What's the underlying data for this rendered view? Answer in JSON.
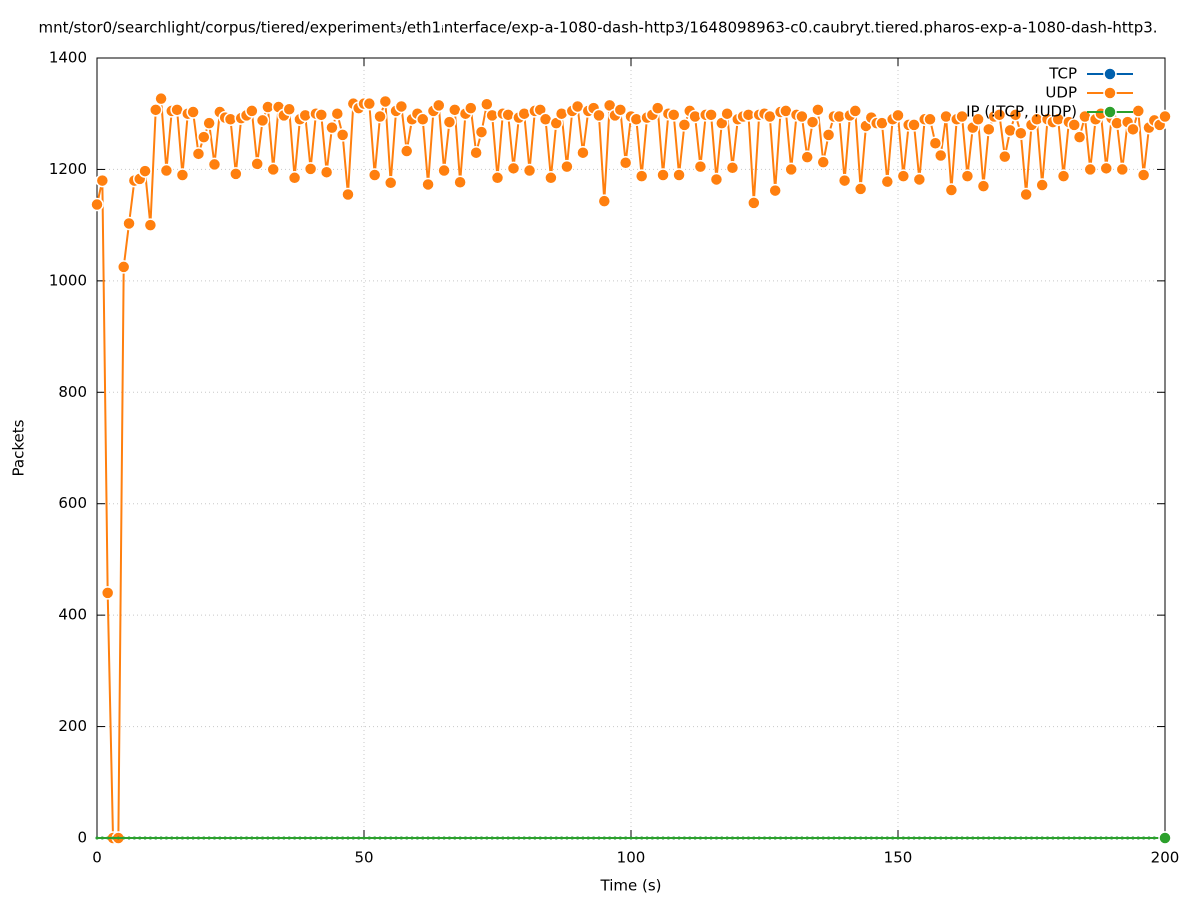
{
  "chart_data": {
    "type": "line",
    "title": "mnt/stor0/searchlight/corpus/tiered/experiment₃/eth1ᵢnterface/exp-a-1080-dash-http3/1648098963-c0.caubryt.tiered.pharos-exp-a-1080-dash-http3.",
    "xlabel": "Time (s)",
    "ylabel": "Packets",
    "xlim": [
      0,
      200
    ],
    "xticks": [
      0,
      50,
      100,
      150,
      200
    ],
    "ylim": [
      0,
      1400
    ],
    "yticks": [
      0,
      200,
      400,
      600,
      800,
      1000,
      1200,
      1400
    ],
    "grid": true,
    "legend": "upper right",
    "x": [
      0,
      1,
      2,
      3,
      4,
      5,
      6,
      7,
      8,
      9,
      10,
      11,
      12,
      13,
      14,
      15,
      16,
      17,
      18,
      19,
      20,
      21,
      22,
      23,
      24,
      25,
      26,
      27,
      28,
      29,
      30,
      31,
      32,
      33,
      34,
      35,
      36,
      37,
      38,
      39,
      40,
      41,
      42,
      43,
      44,
      45,
      46,
      47,
      48,
      49,
      50,
      51,
      52,
      53,
      54,
      55,
      56,
      57,
      58,
      59,
      60,
      61,
      62,
      63,
      64,
      65,
      66,
      67,
      68,
      69,
      70,
      71,
      72,
      73,
      74,
      75,
      76,
      77,
      78,
      79,
      80,
      81,
      82,
      83,
      84,
      85,
      86,
      87,
      88,
      89,
      90,
      91,
      92,
      93,
      94,
      95,
      96,
      97,
      98,
      99,
      100,
      101,
      102,
      103,
      104,
      105,
      106,
      107,
      108,
      109,
      110,
      111,
      112,
      113,
      114,
      115,
      116,
      117,
      118,
      119,
      120,
      121,
      122,
      123,
      124,
      125,
      126,
      127,
      128,
      129,
      130,
      131,
      132,
      133,
      134,
      135,
      136,
      137,
      138,
      139,
      140,
      141,
      142,
      143,
      144,
      145,
      146,
      147,
      148,
      149,
      150,
      151,
      152,
      153,
      154,
      155,
      156,
      157,
      158,
      159,
      160,
      161,
      162,
      163,
      164,
      165,
      166,
      167,
      168,
      169,
      170,
      171,
      172,
      173,
      174,
      175,
      176,
      177,
      178,
      179,
      180,
      181,
      182,
      183,
      184,
      185,
      186,
      187,
      188,
      189,
      190,
      191,
      192,
      193,
      194,
      195,
      196,
      197,
      198,
      199,
      200
    ],
    "series": [
      {
        "name": "TCP",
        "color": "#0060ad",
        "values": [
          0,
          0,
          0,
          0,
          0,
          0,
          0,
          0,
          0,
          0,
          0,
          0,
          0,
          0,
          0,
          0,
          0,
          0,
          0,
          0,
          0,
          0,
          0,
          0,
          0,
          0,
          0,
          0,
          0,
          0,
          0,
          0,
          0,
          0,
          0,
          0,
          0,
          0,
          0,
          0,
          0,
          0,
          0,
          0,
          0,
          0,
          0,
          0,
          0,
          0,
          0,
          0,
          0,
          0,
          0,
          0,
          0,
          0,
          0,
          0,
          0,
          0,
          0,
          0,
          0,
          0,
          0,
          0,
          0,
          0,
          0,
          0,
          0,
          0,
          0,
          0,
          0,
          0,
          0,
          0,
          0,
          0,
          0,
          0,
          0,
          0,
          0,
          0,
          0,
          0,
          0,
          0,
          0,
          0,
          0,
          0,
          0,
          0,
          0,
          0,
          0,
          0,
          0,
          0,
          0,
          0,
          0,
          0,
          0,
          0,
          0,
          0,
          0,
          0,
          0,
          0,
          0,
          0,
          0,
          0,
          0,
          0,
          0,
          0,
          0,
          0,
          0,
          0,
          0,
          0,
          0,
          0,
          0,
          0,
          0,
          0,
          0,
          0,
          0,
          0,
          0,
          0,
          0,
          0,
          0,
          0,
          0,
          0,
          0,
          0,
          0,
          0,
          0,
          0,
          0,
          0,
          0,
          0,
          0,
          0,
          0,
          0,
          0,
          0,
          0,
          0,
          0,
          0,
          0,
          0,
          0,
          0,
          0,
          0,
          0,
          0,
          0,
          0,
          0,
          0,
          0,
          0,
          0,
          0,
          0,
          0,
          0,
          0,
          0,
          0,
          0,
          0,
          0,
          0,
          0,
          0,
          0,
          0,
          0,
          0,
          0
        ]
      },
      {
        "name": "UDP",
        "color": "#ff7f0e",
        "values": [
          1137,
          1180,
          440,
          0,
          0,
          1025,
          1103,
          1180,
          1183,
          1197,
          1100,
          1307,
          1327,
          1198,
          1305,
          1307,
          1190,
          1300,
          1303,
          1228,
          1258,
          1283,
          1209,
          1303,
          1293,
          1290,
          1192,
          1292,
          1297,
          1305,
          1210,
          1288,
          1312,
          1200,
          1312,
          1297,
          1308,
          1185,
          1290,
          1297,
          1201,
          1300,
          1298,
          1195,
          1275,
          1300,
          1262,
          1155,
          1318,
          1310,
          1318,
          1318,
          1190,
          1295,
          1322,
          1176,
          1305,
          1313,
          1233,
          1290,
          1300,
          1290,
          1173,
          1305,
          1315,
          1198,
          1285,
          1307,
          1177,
          1300,
          1310,
          1230,
          1267,
          1317,
          1297,
          1185,
          1300,
          1298,
          1202,
          1293,
          1300,
          1198,
          1305,
          1307,
          1290,
          1185,
          1283,
          1300,
          1205,
          1305,
          1313,
          1230,
          1305,
          1310,
          1297,
          1143,
          1315,
          1297,
          1307,
          1212,
          1295,
          1290,
          1188,
          1293,
          1298,
          1310,
          1190,
          1300,
          1298,
          1190,
          1280,
          1305,
          1295,
          1205,
          1298,
          1298,
          1182,
          1283,
          1300,
          1203,
          1290,
          1295,
          1298,
          1140,
          1298,
          1300,
          1295,
          1162,
          1303,
          1305,
          1200,
          1298,
          1295,
          1222,
          1285,
          1307,
          1213,
          1262,
          1295,
          1295,
          1180,
          1297,
          1305,
          1165,
          1278,
          1293,
          1283,
          1283,
          1178,
          1290,
          1297,
          1188,
          1280,
          1280,
          1182,
          1290,
          1290,
          1247,
          1225,
          1295,
          1163,
          1290,
          1295,
          1188,
          1275,
          1290,
          1170,
          1272,
          1295,
          1298,
          1223,
          1270,
          1298,
          1265,
          1155,
          1280,
          1290,
          1172,
          1290,
          1285,
          1290,
          1188,
          1285,
          1280,
          1258,
          1295,
          1200,
          1290,
          1300,
          1202,
          1292,
          1283,
          1200,
          1285,
          1272,
          1305,
          1190,
          1275,
          1288,
          1280,
          1295
        ]
      },
      {
        "name": "IP (!TCP, !UDP)",
        "color": "#2ca02c",
        "values": [
          0,
          0,
          0,
          0,
          0,
          0,
          0,
          0,
          0,
          0,
          0,
          0,
          0,
          0,
          0,
          0,
          0,
          0,
          0,
          0,
          0,
          0,
          0,
          0,
          0,
          0,
          0,
          0,
          0,
          0,
          0,
          0,
          0,
          0,
          0,
          0,
          0,
          0,
          0,
          0,
          0,
          0,
          0,
          0,
          0,
          0,
          0,
          0,
          0,
          0,
          0,
          0,
          0,
          0,
          0,
          0,
          0,
          0,
          0,
          0,
          0,
          0,
          0,
          0,
          0,
          0,
          0,
          0,
          0,
          0,
          0,
          0,
          0,
          0,
          0,
          0,
          0,
          0,
          0,
          0,
          0,
          0,
          0,
          0,
          0,
          0,
          0,
          0,
          0,
          0,
          0,
          0,
          0,
          0,
          0,
          0,
          0,
          0,
          0,
          0,
          0,
          0,
          0,
          0,
          0,
          0,
          0,
          0,
          0,
          0,
          0,
          0,
          0,
          0,
          0,
          0,
          0,
          0,
          0,
          0,
          0,
          0,
          0,
          0,
          0,
          0,
          0,
          0,
          0,
          0,
          0,
          0,
          0,
          0,
          0,
          0,
          0,
          0,
          0,
          0,
          0,
          0,
          0,
          0,
          0,
          0,
          0,
          0,
          0,
          0,
          0,
          0,
          0,
          0,
          0,
          0,
          0,
          0,
          0,
          0,
          0,
          0,
          0,
          0,
          0,
          0,
          0,
          0,
          0,
          0,
          0,
          0,
          0,
          0,
          0,
          0,
          0,
          0,
          0,
          0,
          0,
          0,
          0,
          0,
          0,
          0,
          0,
          0,
          0,
          0,
          0,
          0,
          0,
          0,
          0,
          0,
          0,
          0,
          0,
          0,
          0
        ]
      }
    ]
  }
}
